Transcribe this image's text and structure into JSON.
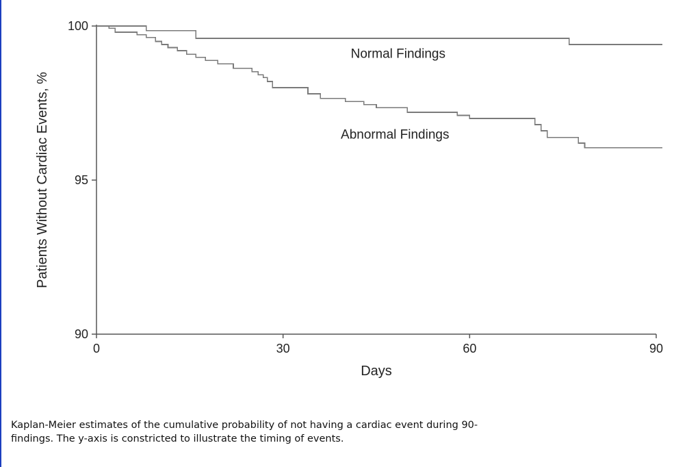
{
  "caption": {
    "line1": "Kaplan-Meier estimates of the cumulative probability of not having a cardiac event during 90-",
    "line2": "findings. The y-axis is constricted to illustrate the timing of events."
  },
  "colors": {
    "series_line": "#7a7a7a",
    "axis": "#555555",
    "page_left_rule": "#1c3fbf"
  },
  "chart_data": {
    "type": "line",
    "step": true,
    "title": "",
    "xlabel": "Days",
    "ylabel": "Patients Without Cardiac Events, %",
    "xlim": [
      0,
      90
    ],
    "ylim": [
      90,
      100
    ],
    "x_ticks": [
      0,
      30,
      60,
      90
    ],
    "y_ticks": [
      90,
      95,
      100
    ],
    "grid": false,
    "legend": "none (series labeled directly on plot)",
    "series": [
      {
        "name": "Normal Findings",
        "points": [
          [
            0,
            100
          ],
          [
            8,
            100
          ],
          [
            8,
            99.85
          ],
          [
            16,
            99.85
          ],
          [
            16,
            99.6
          ],
          [
            76,
            99.6
          ],
          [
            76,
            99.4
          ],
          [
            91,
            99.4
          ]
        ]
      },
      {
        "name": "Abnormal Findings",
        "points": [
          [
            0,
            100
          ],
          [
            2,
            100
          ],
          [
            2,
            99.93
          ],
          [
            3,
            99.93
          ],
          [
            3,
            99.8
          ],
          [
            6.5,
            99.8
          ],
          [
            6.5,
            99.72
          ],
          [
            8,
            99.72
          ],
          [
            8,
            99.63
          ],
          [
            9.5,
            99.63
          ],
          [
            9.5,
            99.5
          ],
          [
            10.5,
            99.5
          ],
          [
            10.5,
            99.4
          ],
          [
            11.5,
            99.4
          ],
          [
            11.5,
            99.3
          ],
          [
            13,
            99.3
          ],
          [
            13,
            99.2
          ],
          [
            14.5,
            99.2
          ],
          [
            14.5,
            99.08
          ],
          [
            16,
            99.08
          ],
          [
            16,
            98.98
          ],
          [
            17.5,
            98.98
          ],
          [
            17.5,
            98.88
          ],
          [
            19.5,
            98.88
          ],
          [
            19.5,
            98.77
          ],
          [
            22,
            98.77
          ],
          [
            22,
            98.63
          ],
          [
            25,
            98.63
          ],
          [
            25,
            98.52
          ],
          [
            26,
            98.52
          ],
          [
            26,
            98.42
          ],
          [
            26.8,
            98.42
          ],
          [
            26.8,
            98.33
          ],
          [
            27.5,
            98.33
          ],
          [
            27.5,
            98.2
          ],
          [
            28.3,
            98.2
          ],
          [
            28.3,
            98.0
          ],
          [
            34,
            98.0
          ],
          [
            34,
            97.8
          ],
          [
            36,
            97.8
          ],
          [
            36,
            97.65
          ],
          [
            40,
            97.65
          ],
          [
            40,
            97.55
          ],
          [
            43,
            97.55
          ],
          [
            43,
            97.45
          ],
          [
            45,
            97.45
          ],
          [
            45,
            97.35
          ],
          [
            50,
            97.35
          ],
          [
            50,
            97.2
          ],
          [
            58,
            97.2
          ],
          [
            58,
            97.1
          ],
          [
            60,
            97.1
          ],
          [
            60,
            97.0
          ],
          [
            70.5,
            97.0
          ],
          [
            70.5,
            96.8
          ],
          [
            71.5,
            96.8
          ],
          [
            71.5,
            96.6
          ],
          [
            72.5,
            96.6
          ],
          [
            72.5,
            96.38
          ],
          [
            77.5,
            96.38
          ],
          [
            77.5,
            96.2
          ],
          [
            78.5,
            96.2
          ],
          [
            78.5,
            96.05
          ],
          [
            91,
            96.05
          ]
        ]
      }
    ]
  }
}
